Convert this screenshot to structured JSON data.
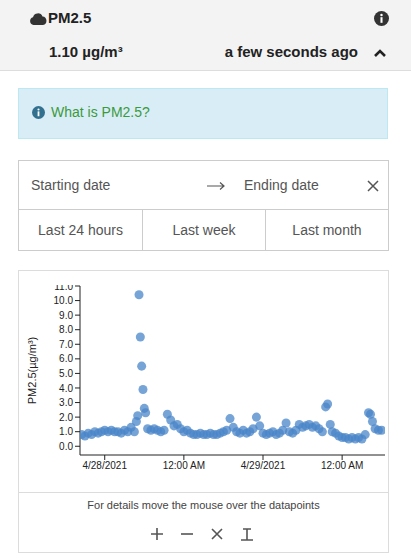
{
  "header": {
    "title": "PM2.5",
    "value": "1.10 µg/m³",
    "updated": "a few seconds ago"
  },
  "info": {
    "link": "What is PM2.5?"
  },
  "date_range": {
    "start": "Starting date",
    "end": "Ending date",
    "presets": [
      "Last 24 hours",
      "Last week",
      "Last month"
    ]
  },
  "chart_data": {
    "type": "scatter",
    "ylabel": "PM2.5(µg/m³)",
    "x": [
      -3.5,
      -3,
      -2.5,
      -2,
      -1.5,
      -1,
      -0.5,
      0,
      0.5,
      1,
      1.5,
      2,
      2.5,
      3,
      3.5,
      4,
      4.5,
      4.8,
      5.0,
      5.2,
      5.4,
      5.6,
      5.8,
      6.0,
      6.2,
      6.5,
      7,
      7.5,
      8,
      8.5,
      9,
      9.5,
      10,
      10.5,
      11,
      11.5,
      12,
      12.5,
      13,
      13.5,
      14,
      14.5,
      15,
      15.5,
      16,
      16.5,
      17,
      17.5,
      18,
      18.5,
      19,
      19.5,
      20,
      20.5,
      21,
      21.5,
      22,
      22.5,
      23,
      23.5,
      24,
      24.5,
      25,
      25.5,
      26,
      26.5,
      27,
      27.5,
      28,
      28.5,
      29,
      29.5,
      30,
      30.5,
      31,
      31.5,
      32,
      32.5,
      33,
      33.5,
      33.8,
      34.2,
      34.5,
      35,
      35.5,
      36,
      36.5,
      37,
      37.5,
      38,
      38.5,
      39,
      39.5,
      40,
      40.3,
      40.6,
      41,
      41.5,
      42
    ],
    "values": [
      0.8,
      0.7,
      0.9,
      0.8,
      1.0,
      0.9,
      1.0,
      1.1,
      1.0,
      1.1,
      1.0,
      1.0,
      0.9,
      1.1,
      1.0,
      1.3,
      1.0,
      1.7,
      2.1,
      10.4,
      7.5,
      5.5,
      3.9,
      2.6,
      2.3,
      1.2,
      1.1,
      1.2,
      1.1,
      1.0,
      1.1,
      2.2,
      1.8,
      1.4,
      1.5,
      1.2,
      1.0,
      1.1,
      0.9,
      0.8,
      0.8,
      0.9,
      0.8,
      0.8,
      0.9,
      0.8,
      0.8,
      0.9,
      1.0,
      1.1,
      1.9,
      1.3,
      1.0,
      0.9,
      1.1,
      0.9,
      1.0,
      1.2,
      2.0,
      1.4,
      0.9,
      0.8,
      0.9,
      1.0,
      0.8,
      0.9,
      1.1,
      1.6,
      1.0,
      0.9,
      1.1,
      1.5,
      1.3,
      1.4,
      1.5,
      1.3,
      1.4,
      1.2,
      1.0,
      2.7,
      2.9,
      1.5,
      1.0,
      0.9,
      0.7,
      0.6,
      0.6,
      0.5,
      0.6,
      0.5,
      0.6,
      0.5,
      0.8,
      2.3,
      2.2,
      1.7,
      1.2,
      1.1,
      1.1
    ],
    "color": "#4a86c8",
    "marker": "circle",
    "xlim": [
      -3.75,
      42.5
    ],
    "xticks": [
      {
        "value": 0,
        "label": "4/28/2021"
      },
      {
        "value": 12,
        "label": "12:00 AM"
      },
      {
        "value": 24,
        "label": "4/29/2021"
      },
      {
        "value": 36,
        "label": "12:00 AM"
      }
    ],
    "ylim": [
      -0.6,
      11
    ],
    "yticks": [
      {
        "value": 0,
        "label": "0.0"
      },
      {
        "value": 1,
        "label": "1.0"
      },
      {
        "value": 2,
        "label": "2.0"
      },
      {
        "value": 3,
        "label": "3.0"
      },
      {
        "value": 4,
        "label": "4.0"
      },
      {
        "value": 5,
        "label": "5.0"
      },
      {
        "value": 6,
        "label": "6.0"
      },
      {
        "value": 7,
        "label": "7.0"
      },
      {
        "value": 8,
        "label": "8.0"
      },
      {
        "value": 9,
        "label": "9.0"
      },
      {
        "value": 10,
        "label": "10.0"
      },
      {
        "value": 11,
        "label": "11.0"
      }
    ],
    "grid": false
  },
  "footer": {
    "hint": "For details move the mouse over the datapoints"
  }
}
